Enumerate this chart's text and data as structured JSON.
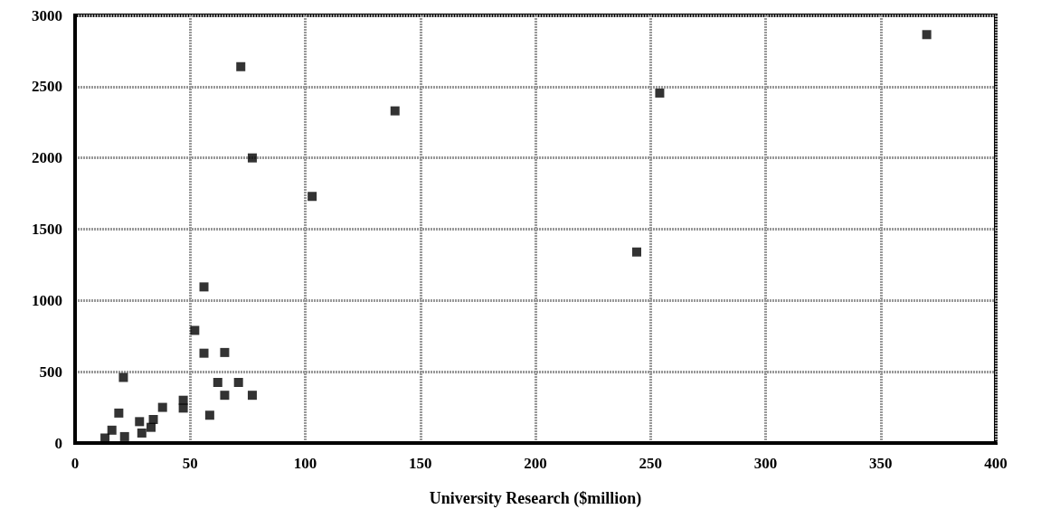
{
  "chart_data": {
    "type": "scatter",
    "xlabel": "University Research ($million)",
    "x": [
      13,
      16,
      19,
      21,
      21.5,
      28,
      29,
      33,
      34,
      38,
      47,
      47,
      52,
      56,
      56,
      58.5,
      62,
      65,
      65,
      71,
      72,
      77,
      77,
      103,
      139,
      244,
      254,
      370
    ],
    "values": [
      35,
      90,
      210,
      460,
      45,
      150,
      70,
      110,
      165,
      250,
      300,
      245,
      790,
      1095,
      630,
      195,
      425,
      635,
      335,
      425,
      2640,
      2000,
      335,
      1730,
      2330,
      1340,
      2455,
      2865
    ],
    "color": "#000000",
    "marker": "square",
    "xlim": [
      0,
      400
    ],
    "xticks": [
      0,
      50,
      100,
      150,
      200,
      250,
      300,
      350,
      400
    ],
    "ylim": [
      0,
      3000
    ],
    "yticks": [
      0,
      500,
      1000,
      1500,
      2000,
      2500,
      3000
    ],
    "grid": true
  }
}
